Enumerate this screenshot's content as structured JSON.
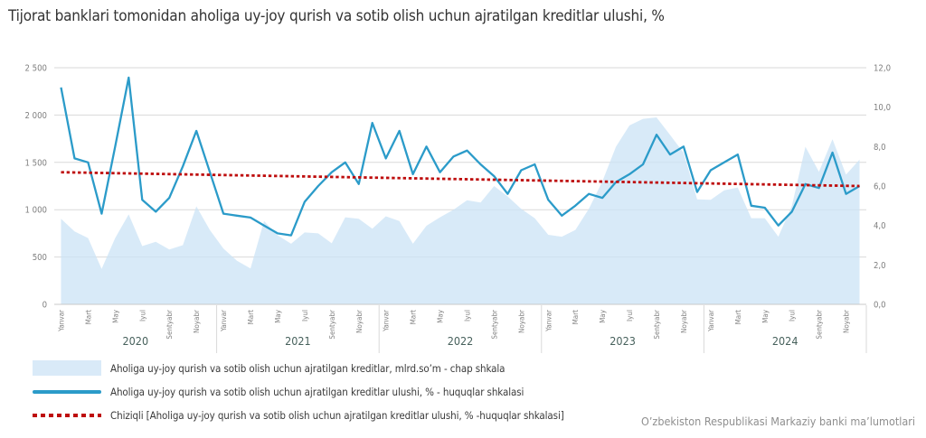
{
  "title": "Tijorat banklari tomonidan aholiga uy-joy qurish va sotib olish uchun ajratilgan kreditlar ulushi, %",
  "source": "O’zbekiston Respublikasi Markaziy banki ma’lumotlari",
  "colors": {
    "area_fill": "#CBE3F5",
    "area_legend": "#D9EAF8",
    "line": "#2B9BC9",
    "trend": "#BE0D0D",
    "grid": "#D9D9D9",
    "axis_line": "#C8C8C8",
    "axis_text": "#7F7F7F",
    "year_text": "#47615C",
    "title_text": "#333333"
  },
  "chart_data": {
    "type": "area + line combo with linear trend, dual axis",
    "title": "Tijorat banklari tomonidan aholiga uy-joy qurish va sotib olish uchun ajratilgan kreditlar ulushi, %",
    "x_unit": "month",
    "years": [
      "2020",
      "2021",
      "2022",
      "2023",
      "2024"
    ],
    "month_tick_labels": [
      "Yanvar",
      "Mart",
      "May",
      "Iyul",
      "Sentyabr",
      "Noyabr"
    ],
    "left_axis": {
      "min": 0,
      "max": 2500,
      "ticks": [
        "0",
        "500",
        "1 000",
        "1 500",
        "2 000",
        "2 500"
      ]
    },
    "right_axis": {
      "min": 0,
      "max": 12,
      "ticks": [
        "0,0",
        "2,0",
        "4,0",
        "6,0",
        "8,0",
        "10,0",
        "12,0"
      ]
    },
    "values_note": "values are monthly, January 2020 through December 2024, estimated from gridlines",
    "series": [
      {
        "name": "Aholiga uy-joy qurish va sotib olish uchun ajratilgan kreditlar, mlrd.so’m - chap shkala",
        "type": "area",
        "axis": "left",
        "values": [
          905,
          770,
          700,
          375,
          700,
          950,
          615,
          660,
          580,
          625,
          1035,
          785,
          590,
          460,
          380,
          880,
          730,
          640,
          760,
          750,
          645,
          920,
          905,
          800,
          930,
          880,
          640,
          830,
          920,
          1000,
          1100,
          1075,
          1250,
          1140,
          1010,
          910,
          735,
          715,
          785,
          1010,
          1300,
          1665,
          1890,
          1960,
          1975,
          1790,
          1600,
          1110,
          1105,
          1205,
          1235,
          910,
          910,
          715,
          1040,
          1665,
          1400,
          1745,
          1370,
          1530
        ]
      },
      {
        "name": "Aholiga uy-joy qurish va sotib olish uchun ajratilgan kreditlar ulushi, % - huquqlar shkalasi",
        "type": "line",
        "axis": "right",
        "values": [
          11.0,
          7.4,
          7.2,
          4.6,
          8.0,
          11.5,
          5.3,
          4.7,
          5.4,
          7.0,
          8.8,
          6.7,
          4.6,
          4.5,
          4.4,
          4.0,
          3.6,
          3.5,
          5.2,
          6.0,
          6.7,
          7.2,
          6.1,
          9.2,
          7.4,
          8.8,
          6.6,
          8.0,
          6.7,
          7.5,
          7.8,
          7.1,
          6.5,
          5.6,
          6.8,
          7.1,
          5.3,
          4.5,
          5.0,
          5.6,
          5.4,
          6.2,
          6.6,
          7.1,
          8.6,
          7.6,
          8.0,
          5.7,
          6.8,
          7.2,
          7.6,
          5.0,
          4.9,
          4.0,
          4.7,
          6.1,
          5.9,
          7.7,
          5.6,
          6.0
        ]
      },
      {
        "name": "Chiziqli [Aholiga uy-joy qurish va sotib olish uchun ajratilgan kreditlar ulushi, % -huquqlar shkalasi]",
        "type": "trend",
        "axis": "right",
        "start": 6.7,
        "end": 6.0
      }
    ]
  }
}
